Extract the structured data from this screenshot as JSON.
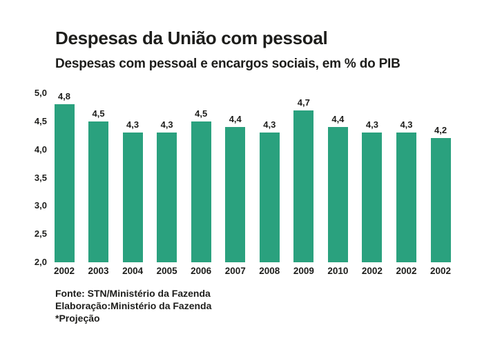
{
  "header": {
    "title": "Despesas da União com pessoal",
    "subtitle": "Despesas com pessoal e encargos sociais, em % do PIB"
  },
  "chart_data": {
    "type": "bar",
    "title": "Despesas da União com pessoal",
    "subtitle": "Despesas com pessoal e encargos sociais, em % do PIB",
    "categories": [
      "2002",
      "2003",
      "2004",
      "2005",
      "2006",
      "2007",
      "2008",
      "2009",
      "2010",
      "2002",
      "2002",
      "2002"
    ],
    "values": [
      4.8,
      4.5,
      4.3,
      4.3,
      4.5,
      4.4,
      4.3,
      4.7,
      4.4,
      4.3,
      4.3,
      4.2
    ],
    "value_labels": [
      "4,8",
      "4,5",
      "4,3",
      "4,3",
      "4,5",
      "4,4",
      "4,3",
      "4,7",
      "4,4",
      "4,3",
      "4,3",
      "4,2"
    ],
    "y_ticks": [
      "5,0",
      "4,5",
      "4,0",
      "3,5",
      "3,0",
      "2,5",
      "2,0"
    ],
    "ylim": [
      2.0,
      5.0
    ],
    "xlabel": "",
    "ylabel": "",
    "grid": false,
    "legend": false,
    "bar_color": "#2aa17e",
    "text_color": "#1d1d1b",
    "background_color": "#ffffff"
  },
  "footer": {
    "source": "Fonte: STN/Ministério da Fazenda",
    "elaboration": "Elaboração:Ministério da Fazenda",
    "projection_note": "*Projeção"
  }
}
